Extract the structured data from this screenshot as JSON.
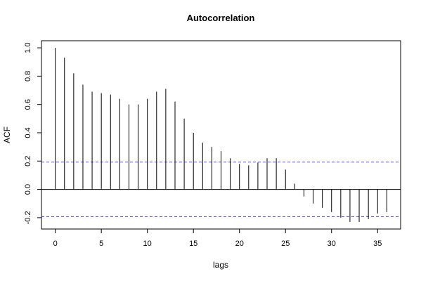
{
  "chart_data": {
    "type": "bar",
    "title": "Autocorrelation",
    "xlabel": "lags",
    "ylabel": "ACF",
    "x": [
      0,
      1,
      2,
      3,
      4,
      5,
      6,
      7,
      8,
      9,
      10,
      11,
      12,
      13,
      14,
      15,
      16,
      17,
      18,
      19,
      20,
      21,
      22,
      23,
      24,
      25,
      26,
      27,
      28,
      29,
      30,
      31,
      32,
      33,
      34,
      35,
      36
    ],
    "values": [
      1.0,
      0.93,
      0.82,
      0.74,
      0.69,
      0.68,
      0.67,
      0.64,
      0.6,
      0.6,
      0.64,
      0.69,
      0.71,
      0.62,
      0.5,
      0.4,
      0.33,
      0.3,
      0.27,
      0.22,
      0.18,
      0.17,
      0.19,
      0.22,
      0.22,
      0.14,
      0.04,
      -0.05,
      -0.1,
      -0.13,
      -0.16,
      -0.2,
      -0.23,
      -0.23,
      -0.21,
      -0.17,
      -0.16
    ],
    "confidence_band": [
      0.193,
      -0.193
    ],
    "confidence_color": "#5555ff",
    "xlim": [
      -1.5,
      37.5
    ],
    "ylim": [
      -0.28,
      1.05
    ],
    "xticks": [
      0,
      5,
      10,
      15,
      20,
      25,
      30,
      35
    ],
    "xtick_labels": [
      "0",
      "5",
      "10",
      "15",
      "20",
      "25",
      "30",
      "35"
    ],
    "yticks": [
      -0.2,
      0.0,
      0.2,
      0.4,
      0.6,
      0.8,
      1.0
    ],
    "ytick_labels": [
      "-0.2",
      "0.0",
      "0.2",
      "0.4",
      "0.6",
      "0.8",
      "1.0"
    ],
    "grid": false,
    "bar_color": "#000000"
  }
}
